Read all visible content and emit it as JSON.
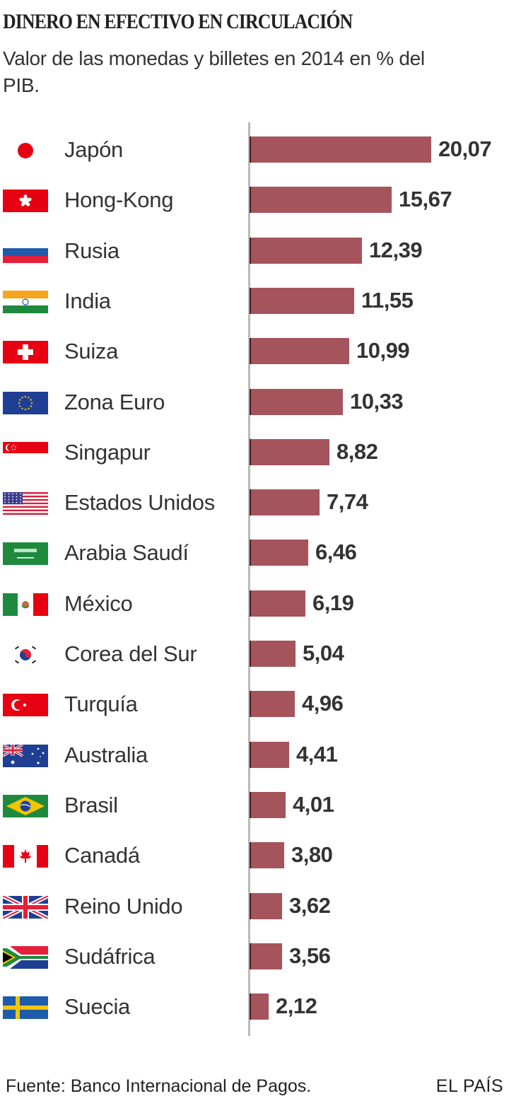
{
  "header": {
    "title": "DINERO EN EFECTIVO EN CIRCULACIÓN",
    "subtitle": "Valor de las monedas y billetes en 2014 en % del PIB."
  },
  "footer": {
    "source": "Fuente: Banco Internacional de Pagos.",
    "brand": "EL PAÍS"
  },
  "colors": {
    "bar": "#a5545c",
    "bar_edge": "#4a1a20",
    "axis": "#b9b9b9",
    "text": "#333333"
  },
  "rows": [
    {
      "country": "Japón",
      "flag": "japan-flag-icon",
      "value": 20.07,
      "value_label": "20,07"
    },
    {
      "country": "Hong-Kong",
      "flag": "hong-kong-flag-icon",
      "value": 15.67,
      "value_label": "15,67"
    },
    {
      "country": "Rusia",
      "flag": "russia-flag-icon",
      "value": 12.39,
      "value_label": "12,39"
    },
    {
      "country": "India",
      "flag": "india-flag-icon",
      "value": 11.55,
      "value_label": "11,55"
    },
    {
      "country": "Suiza",
      "flag": "switzerland-flag-icon",
      "value": 10.99,
      "value_label": "10,99"
    },
    {
      "country": "Zona Euro",
      "flag": "eu-flag-icon",
      "value": 10.33,
      "value_label": "10,33"
    },
    {
      "country": "Singapur",
      "flag": "singapore-flag-icon",
      "value": 8.82,
      "value_label": "8,82"
    },
    {
      "country": "Estados Unidos",
      "flag": "usa-flag-icon",
      "value": 7.74,
      "value_label": "7,74"
    },
    {
      "country": "Arabia Saudí",
      "flag": "saudi-arabia-flag-icon",
      "value": 6.46,
      "value_label": "6,46"
    },
    {
      "country": "México",
      "flag": "mexico-flag-icon",
      "value": 6.19,
      "value_label": "6,19"
    },
    {
      "country": "Corea del Sur",
      "flag": "south-korea-flag-icon",
      "value": 5.04,
      "value_label": "5,04"
    },
    {
      "country": "Turquía",
      "flag": "turkey-flag-icon",
      "value": 4.96,
      "value_label": "4,96"
    },
    {
      "country": "Australia",
      "flag": "australia-flag-icon",
      "value": 4.41,
      "value_label": "4,41"
    },
    {
      "country": "Brasil",
      "flag": "brazil-flag-icon",
      "value": 4.01,
      "value_label": "4,01"
    },
    {
      "country": "Canadá",
      "flag": "canada-flag-icon",
      "value": 3.8,
      "value_label": "3,80"
    },
    {
      "country": "Reino Unido",
      "flag": "uk-flag-icon",
      "value": 3.62,
      "value_label": "3,62"
    },
    {
      "country": "Sudáfrica",
      "flag": "south-africa-flag-icon",
      "value": 3.56,
      "value_label": "3,56"
    },
    {
      "country": "Suecia",
      "flag": "sweden-flag-icon",
      "value": 2.12,
      "value_label": "2,12"
    }
  ],
  "chart_data": {
    "type": "bar",
    "orientation": "horizontal",
    "title": "DINERO EN EFECTIVO EN CIRCULACIÓN",
    "subtitle": "Valor de las monedas y billetes en 2014 en % del PIB.",
    "xlabel": "",
    "ylabel": "",
    "categories": [
      "Japón",
      "Hong-Kong",
      "Rusia",
      "India",
      "Suiza",
      "Zona Euro",
      "Singapur",
      "Estados Unidos",
      "Arabia Saudí",
      "México",
      "Corea del Sur",
      "Turquía",
      "Australia",
      "Brasil",
      "Canadá",
      "Reino Unido",
      "Sudáfrica",
      "Suecia"
    ],
    "values": [
      20.07,
      15.67,
      12.39,
      11.55,
      10.99,
      10.33,
      8.82,
      7.74,
      6.46,
      6.19,
      5.04,
      4.96,
      4.41,
      4.01,
      3.8,
      3.62,
      3.56,
      2.12
    ],
    "data_labels": [
      "20,07",
      "15,67",
      "12,39",
      "11,55",
      "10,99",
      "10,33",
      "8,82",
      "7,74",
      "6,46",
      "6,19",
      "5,04",
      "4,96",
      "4,41",
      "4,01",
      "3,80",
      "3,62",
      "3,56",
      "2,12"
    ],
    "xlim": [
      0,
      20.07
    ],
    "grid": false,
    "legend": null,
    "source": "Fuente: Banco Internacional de Pagos."
  }
}
